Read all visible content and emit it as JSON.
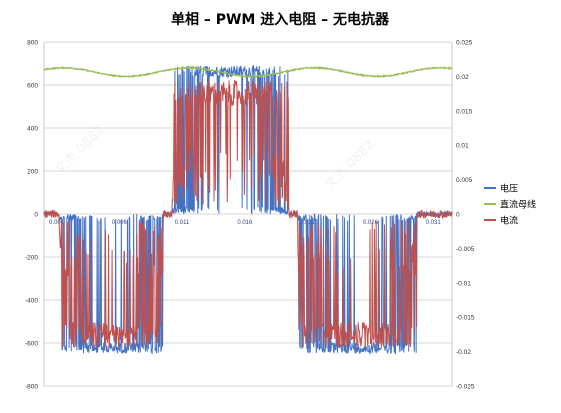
{
  "chart_data": {
    "type": "line",
    "title": "单相 – PWM 进入电阻 – 无电抗器",
    "y_left": {
      "lim": [
        -800,
        800
      ],
      "ticks": [
        "800",
        "600",
        "400",
        "200",
        "0",
        "-200",
        "-400",
        "-600",
        "-800"
      ]
    },
    "y_right": {
      "lim": [
        -0.025,
        0.025
      ],
      "ticks": [
        "0.025",
        "0.02",
        "0.015",
        "0.01",
        "0.005",
        "0",
        "-0.005",
        "-0.01",
        "-0.015",
        "-0.02",
        "-0.025"
      ]
    },
    "x": {
      "lim": [
        0.0,
        0.0325
      ],
      "ticks": [
        "0.001",
        "0.006",
        "0.011",
        "0.016",
        "0.021",
        "0.026",
        "0.031"
      ]
    },
    "grid": true,
    "legend_position": "right",
    "series": [
      {
        "name": "电压",
        "axis": "left",
        "color": "#4472C4",
        "pattern": "pwm",
        "half_cycles": [
          {
            "from": 0.0012,
            "to": 0.0095,
            "level": -630
          },
          {
            "from": 0.0102,
            "to": 0.0195,
            "level": 670
          },
          {
            "from": 0.0202,
            "to": 0.0297,
            "level": -630
          }
        ]
      },
      {
        "name": "直流母线",
        "axis": "left",
        "color": "#9BBB59",
        "pattern": "ripple",
        "mean": 660,
        "amplitude": 20,
        "period": 0.01
      },
      {
        "name": "电流",
        "axis": "right",
        "color": "#C0504D",
        "pattern": "pwm_current",
        "half_cycles": [
          {
            "from": 0.0012,
            "to": 0.0095,
            "level": -0.0185
          },
          {
            "from": 0.0102,
            "to": 0.0195,
            "level": 0.0185
          },
          {
            "from": 0.0202,
            "to": 0.0297,
            "level": -0.0185
          }
        ]
      }
    ]
  },
  "watermark": "文杰 0882"
}
